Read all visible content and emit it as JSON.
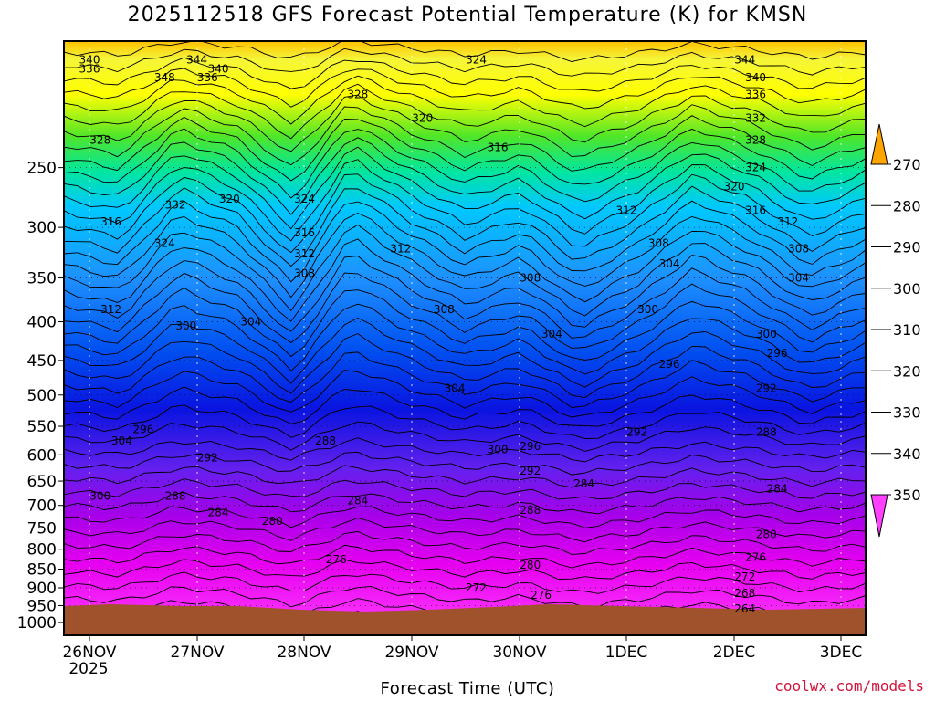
{
  "chart_data": {
    "type": "heatmap",
    "title": "2025112518 GFS Forecast Potential Temperature (K) for KMSN",
    "xlabel": "Forecast Time (UTC)",
    "ylabel": "",
    "x_tick_labels": [
      "26NOV",
      "27NOV",
      "28NOV",
      "29NOV",
      "30NOV",
      "1DEC",
      "2DEC",
      "3DEC"
    ],
    "x_tick_year": "2025",
    "y_tick_labels": [
      "250",
      "300",
      "350",
      "400",
      "450",
      "500",
      "550",
      "600",
      "650",
      "700",
      "750",
      "800",
      "850",
      "900",
      "950",
      "1000"
    ],
    "y_values_hpa": [
      250,
      300,
      350,
      400,
      450,
      500,
      550,
      600,
      650,
      700,
      750,
      800,
      850,
      900,
      950,
      1000
    ],
    "y_axis": "pressure (hPa), log scale, inverted",
    "colorbar_levels": [
      270,
      280,
      290,
      300,
      310,
      320,
      330,
      340,
      350
    ],
    "colorbar_colors": [
      "#f000c8",
      "#ff00ff",
      "#b000e8",
      "#7a1cf0",
      "#1c1ce8",
      "#0064ff",
      "#1e90ff",
      "#00b4ff",
      "#00e0b0",
      "#28e628",
      "#90ee1e",
      "#ffff00",
      "#ffa500"
    ],
    "contour_interval_K": 4,
    "contour_labels": [
      {
        "v": "340",
        "x": "26NOV+0.0",
        "p": 180
      },
      {
        "v": "336",
        "x": "26NOV+0.0",
        "p": 185
      },
      {
        "v": "344",
        "x": "26NOV+1.0",
        "p": 180
      },
      {
        "v": "340",
        "x": "26NOV+1.2",
        "p": 185
      },
      {
        "v": "336",
        "x": "26NOV+1.1",
        "p": 190
      },
      {
        "v": "348",
        "x": "26NOV+0.7",
        "p": 190
      },
      {
        "v": "328",
        "x": "26NOV+0.1",
        "p": 230
      },
      {
        "v": "328",
        "x": "28NOV+0.5",
        "p": 200
      },
      {
        "v": "324",
        "x": "29NOV+0.6",
        "p": 180
      },
      {
        "v": "320",
        "x": "29NOV+0.1",
        "p": 215
      },
      {
        "v": "316",
        "x": "29NOV+0.8",
        "p": 235
      },
      {
        "v": "332",
        "x": "26NOV+0.8",
        "p": 280
      },
      {
        "v": "320",
        "x": "27NOV+0.3",
        "p": 275
      },
      {
        "v": "324",
        "x": "27NOV+1.0",
        "p": 275
      },
      {
        "v": "316",
        "x": "26NOV+0.2",
        "p": 295
      },
      {
        "v": "324",
        "x": "26NOV+0.7",
        "p": 315
      },
      {
        "v": "316",
        "x": "27NOV+1.0",
        "p": 305
      },
      {
        "v": "312",
        "x": "27NOV+1.0",
        "p": 325
      },
      {
        "v": "312",
        "x": "28NOV+0.9",
        "p": 320
      },
      {
        "v": "308",
        "x": "27NOV+1.0",
        "p": 345
      },
      {
        "v": "312",
        "x": "26NOV+0.2",
        "p": 385
      },
      {
        "v": "300",
        "x": "26NOV+0.9",
        "p": 405
      },
      {
        "v": "304",
        "x": "27NOV+0.5",
        "p": 400
      },
      {
        "v": "308",
        "x": "29NOV+0.3",
        "p": 385
      },
      {
        "v": "308",
        "x": "30NOV+0.1",
        "p": 350
      },
      {
        "v": "304",
        "x": "30NOV+0.3",
        "p": 415
      },
      {
        "v": "304",
        "x": "29NOV+0.4",
        "p": 490
      },
      {
        "v": "312",
        "x": "1DEC+0.0",
        "p": 285
      },
      {
        "v": "308",
        "x": "1DEC+0.3",
        "p": 315
      },
      {
        "v": "304",
        "x": "1DEC+0.4",
        "p": 335
      },
      {
        "v": "300",
        "x": "1DEC+0.2",
        "p": 385
      },
      {
        "v": "296",
        "x": "1DEC+0.4",
        "p": 455
      },
      {
        "v": "292",
        "x": "1DEC+0.1",
        "p": 560
      },
      {
        "v": "344",
        "x": "2DEC+0.1",
        "p": 180
      },
      {
        "v": "340",
        "x": "2DEC+0.2",
        "p": 190
      },
      {
        "v": "336",
        "x": "2DEC+0.2",
        "p": 200
      },
      {
        "v": "332",
        "x": "2DEC+0.2",
        "p": 215
      },
      {
        "v": "328",
        "x": "2DEC+0.2",
        "p": 230
      },
      {
        "v": "324",
        "x": "2DEC+0.2",
        "p": 250
      },
      {
        "v": "320",
        "x": "2DEC+0.0",
        "p": 265
      },
      {
        "v": "316",
        "x": "2DEC+0.2",
        "p": 285
      },
      {
        "v": "312",
        "x": "2DEC+0.5",
        "p": 295
      },
      {
        "v": "308",
        "x": "2DEC+0.6",
        "p": 320
      },
      {
        "v": "304",
        "x": "2DEC+0.6",
        "p": 350
      },
      {
        "v": "300",
        "x": "2DEC+0.3",
        "p": 415
      },
      {
        "v": "296",
        "x": "2DEC+0.4",
        "p": 440
      },
      {
        "v": "292",
        "x": "2DEC+0.3",
        "p": 490
      },
      {
        "v": "288",
        "x": "2DEC+0.3",
        "p": 560
      },
      {
        "v": "284",
        "x": "2DEC+0.4",
        "p": 665
      },
      {
        "v": "280",
        "x": "2DEC+0.3",
        "p": 765
      },
      {
        "v": "276",
        "x": "2DEC+0.2",
        "p": 820
      },
      {
        "v": "272",
        "x": "2DEC+0.1",
        "p": 870
      },
      {
        "v": "268",
        "x": "2DEC+0.1",
        "p": 915
      },
      {
        "v": "264",
        "x": "2DEC+0.1",
        "p": 960
      },
      {
        "v": "304",
        "x": "26NOV+0.3",
        "p": 575
      },
      {
        "v": "296",
        "x": "26NOV+0.5",
        "p": 555
      },
      {
        "v": "292",
        "x": "26NOV+1.1",
        "p": 605
      },
      {
        "v": "300",
        "x": "26NOV+0.1",
        "p": 680
      },
      {
        "v": "288",
        "x": "26NOV+0.8",
        "p": 680
      },
      {
        "v": "284",
        "x": "26NOV+1.2",
        "p": 715
      },
      {
        "v": "288",
        "x": "28NOV+0.2",
        "p": 575
      },
      {
        "v": "284",
        "x": "28NOV+0.5",
        "p": 690
      },
      {
        "v": "280",
        "x": "27NOV+0.7",
        "p": 735
      },
      {
        "v": "276",
        "x": "28NOV+0.3",
        "p": 825
      },
      {
        "v": "272",
        "x": "29NOV+0.6",
        "p": 900
      },
      {
        "v": "300",
        "x": "29NOV+0.8",
        "p": 590
      },
      {
        "v": "296",
        "x": "30NOV+0.1",
        "p": 585
      },
      {
        "v": "292",
        "x": "30NOV+0.1",
        "p": 630
      },
      {
        "v": "288",
        "x": "30NOV+0.1",
        "p": 710
      },
      {
        "v": "280",
        "x": "30NOV+0.1",
        "p": 840
      },
      {
        "v": "276",
        "x": "30NOV+0.2",
        "p": 920
      },
      {
        "v": "284",
        "x": "30NOV+0.6",
        "p": 655
      }
    ]
  },
  "footer": "coolwx.com/models"
}
